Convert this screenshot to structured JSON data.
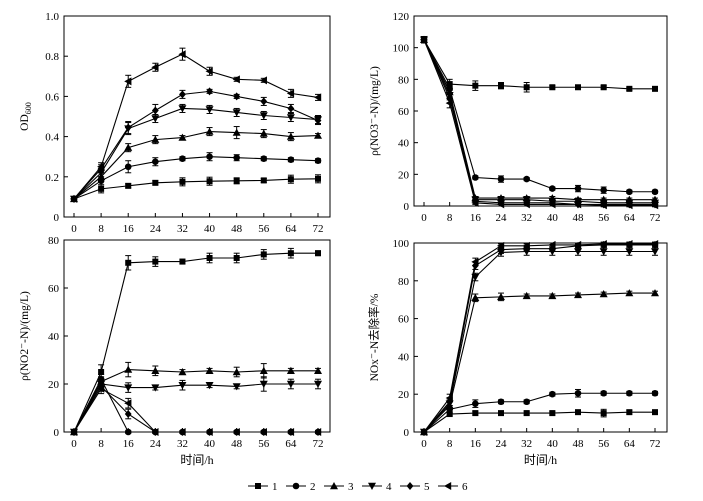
{
  "legend": [
    "1",
    "2",
    "3",
    "4",
    "5",
    "6"
  ],
  "marker_shapes": [
    "square",
    "circle",
    "triangle-up",
    "triangle-down",
    "diamond",
    "triangle-left"
  ],
  "line_color": "#000000",
  "chart_data": [
    {
      "type": "line",
      "xlabel": "",
      "ylabel": "OD600",
      "ylabel_main": "OD",
      "ylabel_sub": "600",
      "ylim": [
        0,
        1.0
      ],
      "yticks": [
        0,
        0.2,
        0.4,
        0.6,
        0.8,
        1.0
      ],
      "ytick_labels": [
        "0",
        "0.2",
        "0.4",
        "0.6",
        "0.8",
        "1.0"
      ],
      "xticks": [
        0,
        8,
        16,
        24,
        32,
        40,
        48,
        56,
        64,
        72
      ],
      "x": [
        0,
        8,
        16,
        24,
        32,
        40,
        48,
        56,
        64,
        72
      ],
      "series": [
        {
          "values": [
            0.09,
            0.14,
            0.155,
            0.17,
            0.175,
            0.178,
            0.18,
            0.182,
            0.188,
            0.19
          ],
          "err": [
            0.01,
            0.02,
            0.01,
            0.01,
            0.02,
            0.02,
            0.015,
            0.01,
            0.02,
            0.02
          ]
        },
        {
          "values": [
            0.09,
            0.18,
            0.25,
            0.275,
            0.29,
            0.3,
            0.295,
            0.29,
            0.285,
            0.28
          ],
          "err": [
            0.01,
            0.02,
            0.03,
            0.02,
            0.01,
            0.02,
            0.015,
            0.01,
            0.01,
            0.01
          ]
        },
        {
          "values": [
            0.09,
            0.2,
            0.345,
            0.385,
            0.395,
            0.425,
            0.42,
            0.415,
            0.4,
            0.405
          ],
          "err": [
            0.01,
            0.02,
            0.02,
            0.02,
            0.01,
            0.02,
            0.03,
            0.02,
            0.02,
            0.01
          ]
        },
        {
          "values": [
            0.09,
            0.22,
            0.44,
            0.49,
            0.54,
            0.535,
            0.52,
            0.505,
            0.495,
            0.485
          ],
          "err": [
            0.01,
            0.02,
            0.03,
            0.02,
            0.02,
            0.02,
            0.02,
            0.02,
            0.02,
            0.02
          ]
        },
        {
          "values": [
            0.09,
            0.24,
            0.445,
            0.53,
            0.61,
            0.625,
            0.6,
            0.575,
            0.54,
            0.48
          ],
          "err": [
            0.01,
            0.02,
            0.03,
            0.03,
            0.02,
            0.01,
            0.01,
            0.02,
            0.02,
            0.02
          ]
        },
        {
          "values": [
            0.09,
            0.25,
            0.675,
            0.745,
            0.81,
            0.725,
            0.685,
            0.68,
            0.615,
            0.595
          ],
          "err": [
            0.01,
            0.02,
            0.03,
            0.02,
            0.03,
            0.02,
            0.01,
            0.01,
            0.02,
            0.015
          ]
        }
      ]
    },
    {
      "type": "line",
      "xlabel": "",
      "ylabel": "ρ(NO3⁻-N)/(mg/L)",
      "ylim": [
        0,
        120
      ],
      "yticks": [
        0,
        20,
        40,
        60,
        80,
        100,
        120
      ],
      "ytick_labels": [
        "0",
        "20",
        "40",
        "60",
        "80",
        "100",
        "120"
      ],
      "xticks": [
        0,
        8,
        16,
        24,
        32,
        40,
        48,
        56,
        64,
        72
      ],
      "x": [
        0,
        8,
        16,
        24,
        32,
        40,
        48,
        56,
        64,
        72
      ],
      "series": [
        {
          "values": [
            105,
            77,
            76,
            76,
            75,
            75,
            75,
            75,
            74,
            74
          ],
          "err": [
            2,
            3,
            3,
            2,
            3,
            1,
            1,
            1,
            1,
            1
          ]
        },
        {
          "values": [
            105,
            74,
            18,
            17,
            17,
            11,
            11,
            10,
            9,
            9
          ],
          "err": [
            2,
            3,
            1,
            2,
            1,
            1,
            2,
            2,
            1,
            1
          ]
        },
        {
          "values": [
            105,
            72,
            5,
            5,
            5,
            5,
            4,
            4,
            4,
            4
          ],
          "err": [
            2,
            3,
            1,
            1,
            1,
            1,
            1,
            1,
            1,
            1
          ]
        },
        {
          "values": [
            105,
            70,
            4,
            4,
            4,
            3,
            3,
            2,
            2,
            2
          ],
          "err": [
            2,
            3,
            1,
            1,
            1,
            1,
            1,
            1,
            1,
            1
          ]
        },
        {
          "values": [
            105,
            68,
            3,
            2,
            2,
            2,
            1,
            1,
            1,
            1
          ],
          "err": [
            2,
            3,
            1,
            1,
            1,
            1,
            1,
            1,
            1,
            1
          ]
        },
        {
          "values": [
            105,
            65,
            2,
            1,
            1,
            1,
            1,
            0.5,
            0.5,
            0.5
          ],
          "err": [
            2,
            3,
            1,
            1,
            1,
            1,
            1,
            1,
            1,
            1
          ]
        }
      ]
    },
    {
      "type": "line",
      "xlabel": "时间/h",
      "ylabel": "ρ(NO2⁻-N)/(mg/L)",
      "ylim": [
        0,
        80
      ],
      "yticks": [
        0,
        20,
        40,
        60,
        80
      ],
      "ytick_labels": [
        "0",
        "20",
        "40",
        "60",
        "80"
      ],
      "xticks": [
        0,
        8,
        16,
        24,
        32,
        40,
        48,
        56,
        64,
        72
      ],
      "x": [
        0,
        8,
        16,
        24,
        32,
        40,
        48,
        56,
        64,
        72
      ],
      "series": [
        {
          "values": [
            0,
            25,
            70.5,
            71,
            71,
            72.5,
            72.5,
            74,
            74.5,
            74.5
          ],
          "err": [
            0.5,
            3,
            3,
            2,
            1,
            2,
            2,
            2,
            2,
            1
          ]
        },
        {
          "values": [
            0,
            22,
            0,
            0,
            0,
            0,
            0,
            0,
            0,
            0
          ],
          "err": [
            0.5,
            2,
            0.5,
            0.5,
            0.5,
            0.5,
            0.5,
            0.5,
            0.5,
            0.5
          ]
        },
        {
          "values": [
            0,
            21,
            26,
            25.5,
            25,
            25.5,
            25,
            25.5,
            25.5,
            25.5
          ],
          "err": [
            0.5,
            2,
            3,
            2,
            1,
            1,
            2,
            3,
            1,
            1
          ]
        },
        {
          "values": [
            0,
            20,
            18.5,
            18.5,
            19.5,
            19.5,
            19,
            20,
            20,
            20
          ],
          "err": [
            0.5,
            2,
            2,
            1,
            2,
            1,
            1,
            3,
            2,
            2
          ]
        },
        {
          "values": [
            0,
            19,
            7.5,
            0,
            0,
            0,
            0,
            0,
            0,
            0
          ],
          "err": [
            0.5,
            2,
            2,
            0.5,
            0.5,
            0.5,
            0.5,
            0.5,
            0.5,
            0.5
          ]
        },
        {
          "values": [
            0,
            18,
            12,
            0,
            0,
            0,
            0,
            0,
            0,
            0
          ],
          "err": [
            0.5,
            2,
            2,
            0.5,
            0.5,
            0.5,
            0.5,
            0.5,
            0.5,
            0.5
          ]
        }
      ]
    },
    {
      "type": "line",
      "xlabel": "时间/h",
      "ylabel": "NOx⁻-N去除率/%",
      "ylim": [
        0,
        100
      ],
      "yticks": [
        0,
        20,
        40,
        60,
        80,
        100
      ],
      "ytick_labels": [
        "0",
        "20",
        "40",
        "60",
        "80",
        "100"
      ],
      "xticks": [
        0,
        8,
        16,
        24,
        32,
        40,
        48,
        56,
        64,
        72
      ],
      "x": [
        0,
        8,
        16,
        24,
        32,
        40,
        48,
        56,
        64,
        72
      ],
      "series": [
        {
          "values": [
            0,
            9.5,
            10,
            10,
            10,
            10,
            10.5,
            10,
            10.5,
            10.5
          ],
          "err": [
            0.5,
            1,
            1,
            1,
            1,
            1,
            1,
            2,
            1,
            1
          ]
        },
        {
          "values": [
            0,
            12,
            15,
            16,
            16,
            20,
            20.5,
            20.5,
            20.5,
            20.5
          ],
          "err": [
            0.5,
            2,
            2,
            1,
            1,
            1,
            2,
            1,
            1,
            1
          ]
        },
        {
          "values": [
            0,
            14,
            71,
            71.5,
            72,
            72,
            72.5,
            73,
            73.5,
            73.5
          ],
          "err": [
            0.5,
            2,
            2,
            2,
            1,
            1,
            1,
            1,
            1,
            1
          ]
        },
        {
          "values": [
            0,
            15,
            82,
            95,
            95.5,
            95.5,
            95.5,
            95.5,
            95.5,
            95.5
          ],
          "err": [
            0.5,
            2,
            2,
            2,
            2,
            2,
            2,
            2,
            2,
            2
          ]
        },
        {
          "values": [
            0,
            16,
            88,
            96.5,
            97,
            97,
            98.5,
            99,
            99,
            99
          ],
          "err": [
            0.5,
            2,
            2,
            2,
            1,
            1,
            1,
            1,
            1,
            1
          ]
        },
        {
          "values": [
            0,
            18,
            90,
            98.5,
            98.5,
            99,
            99,
            99.5,
            99.5,
            99.5
          ],
          "err": [
            0.5,
            2,
            2,
            1,
            1,
            1,
            1,
            1,
            1,
            1
          ]
        }
      ]
    }
  ]
}
